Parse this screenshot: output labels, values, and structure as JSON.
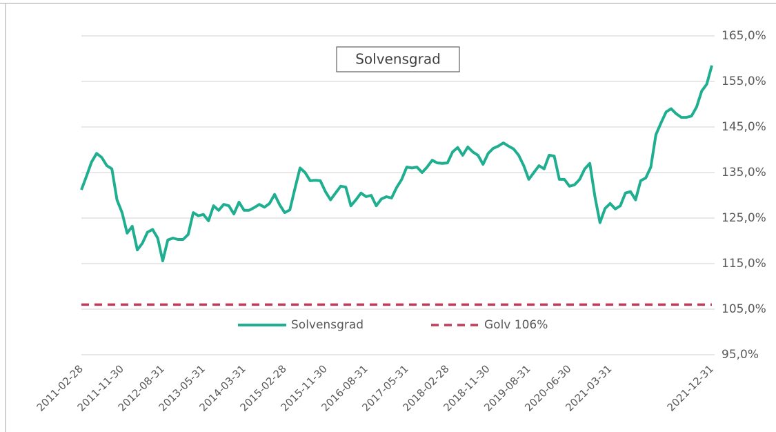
{
  "chart_data": {
    "type": "line",
    "title": "Solvensgrad",
    "categories": [
      "2011-02-28",
      null,
      null,
      null,
      null,
      null,
      null,
      null,
      "2011-11-30",
      null,
      null,
      null,
      null,
      null,
      null,
      null,
      "2012-08-31",
      null,
      null,
      null,
      null,
      null,
      null,
      null,
      "2013-05-31",
      null,
      null,
      null,
      null,
      null,
      null,
      null,
      "2014-03-31",
      null,
      null,
      null,
      null,
      null,
      null,
      null,
      "2015-02-28",
      null,
      null,
      null,
      null,
      null,
      null,
      null,
      "2015-11-30",
      null,
      null,
      null,
      null,
      null,
      null,
      null,
      "2016-08-31",
      null,
      null,
      null,
      null,
      null,
      null,
      null,
      "2017-05-31",
      null,
      null,
      null,
      null,
      null,
      null,
      null,
      "2018-02-28",
      null,
      null,
      null,
      null,
      null,
      null,
      null,
      "2018-11-30",
      null,
      null,
      null,
      null,
      null,
      null,
      null,
      "2019-08-31",
      null,
      null,
      null,
      null,
      null,
      null,
      null,
      "2020-06-30",
      null,
      null,
      null,
      null,
      null,
      null,
      null,
      "2021-03-31",
      null,
      null,
      null,
      null,
      null,
      null,
      null,
      null,
      null,
      null,
      null,
      null,
      null,
      null,
      null,
      null,
      null,
      null,
      null,
      "2021-12-31"
    ],
    "series": [
      {
        "name": "Solvensgrad",
        "color": "#1fae8f",
        "style": "solid",
        "values": [
          131.2,
          134.2,
          137.3,
          139.2,
          138.3,
          136.5,
          135.8,
          129,
          126.2,
          121.7,
          123.2,
          118,
          119.5,
          121.9,
          122.5,
          120.6,
          115.6,
          120.2,
          120.6,
          120.3,
          120.3,
          121.4,
          126.2,
          125.5,
          125.8,
          124.4,
          127.7,
          126.7,
          128,
          127.7,
          125.9,
          128.5,
          126.7,
          126.7,
          127.3,
          128,
          127.4,
          128.2,
          130.2,
          127.9,
          126.2,
          126.8,
          131.5,
          136,
          135,
          133.2,
          133.3,
          133.2,
          130.8,
          129,
          130.5,
          132,
          131.8,
          127.7,
          129,
          130.5,
          129.7,
          130,
          127.7,
          129.2,
          129.7,
          129.4,
          131.7,
          133.5,
          136.2,
          136,
          136.2,
          135,
          136.2,
          137.7,
          137.1,
          137,
          137.1,
          139.5,
          140.5,
          138.8,
          140.6,
          139.5,
          138.8,
          136.8,
          139.2,
          140.3,
          140.8,
          141.5,
          140.8,
          140.2,
          138.8,
          136.5,
          133.5,
          135,
          136.5,
          135.8,
          138.8,
          138.6,
          133.5,
          133.5,
          132,
          132.3,
          133.5,
          135.8,
          137,
          129.7,
          124,
          127.1,
          128.2,
          127,
          127.7,
          130.5,
          130.8,
          129,
          133.2,
          133.8,
          136.2,
          143.3,
          145.9,
          148.3,
          149,
          147.9,
          147.1,
          147.1,
          147.4,
          149.4,
          152.9,
          154.4,
          158.5
        ]
      },
      {
        "name": "Golv 106%",
        "color": "#c23b5a",
        "style": "dashed",
        "value": 106
      }
    ],
    "ylim": [
      95,
      165
    ],
    "yticks": [
      {
        "value": 95,
        "label": "95,0%"
      },
      {
        "value": 105,
        "label": "105,0%"
      },
      {
        "value": 115,
        "label": "115,0%"
      },
      {
        "value": 125,
        "label": "125,0%"
      },
      {
        "value": 135,
        "label": "135,0%"
      },
      {
        "value": 145,
        "label": "145,0%"
      },
      {
        "value": 155,
        "label": "155,0%"
      },
      {
        "value": 165,
        "label": "165,0%"
      }
    ],
    "grid": true,
    "legend": "bottom"
  }
}
